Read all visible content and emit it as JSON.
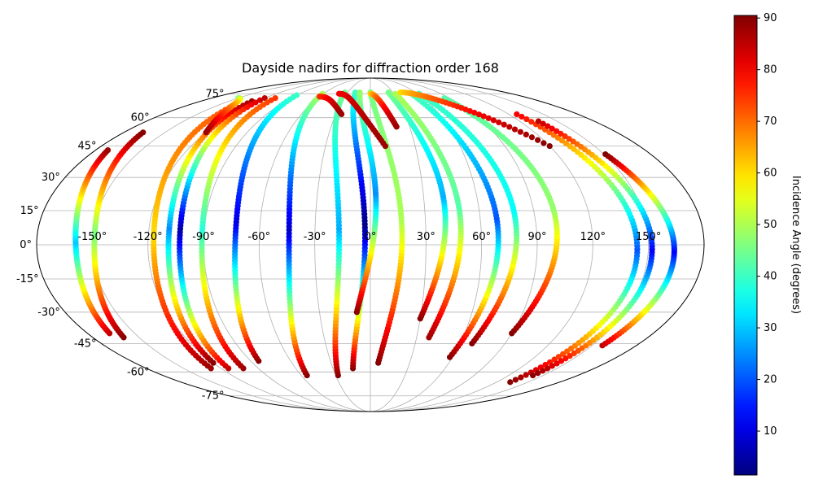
{
  "chart_data": {
    "type": "scatter",
    "projection": "mollweide",
    "title": "Dayside nadirs for diffraction order 168",
    "grid": true,
    "xtick_labels": [
      "-150°",
      "-120°",
      "-90°",
      "-60°",
      "-30°",
      "0°",
      "30°",
      "60°",
      "90°",
      "120°",
      "150°"
    ],
    "ytick_labels": [
      "-75°",
      "-60°",
      "-45°",
      "-30°",
      "-15°",
      "0°",
      "15°",
      "30°",
      "45°",
      "60°",
      "75°"
    ],
    "colorbar": {
      "label": "Incidence Angle (degrees)",
      "colormap": "jet",
      "range": [
        1.5,
        90.5
      ],
      "ticks": [
        "10",
        "20",
        "30",
        "40",
        "50",
        "60",
        "70",
        "80",
        "90"
      ]
    },
    "series": [
      {
        "lon": 157,
        "lat_min": -46,
        "lat_max": 41,
        "inc_start": 85,
        "inc_mid": 12,
        "inc_end": 90,
        "wraps": true
      },
      {
        "lon": -166,
        "lat_min": -40,
        "lat_max": 43,
        "inc_start": 85,
        "inc_mid": 30,
        "inc_end": 88,
        "wraps": true
      },
      {
        "lon": -160,
        "lat_min": -42,
        "lat_max": 52,
        "inc_start": 90,
        "inc_mid": 45,
        "inc_end": 90
      },
      {
        "lon": -128,
        "lat_min": -58,
        "lat_max": 66,
        "inc_start": 88,
        "inc_mid": 60,
        "inc_end": 72
      },
      {
        "lon": -120,
        "lat_min": -55,
        "lat_max": 70,
        "inc_start": 90,
        "inc_mid": 25,
        "inc_end": 88
      },
      {
        "lon": -114,
        "lat_min": -58,
        "lat_max": 72,
        "inc_start": 85,
        "inc_mid": 5,
        "inc_end": 85
      },
      {
        "lon": -102,
        "lat_min": -58,
        "lat_max": 72,
        "inc_start": 88,
        "inc_mid": 38,
        "inc_end": 75
      },
      {
        "lon": -84,
        "lat_min": -54,
        "lat_max": 74,
        "inc_start": 90,
        "inc_mid": 10,
        "inc_end": 40
      },
      {
        "lon": -55,
        "lat_min": -62,
        "lat_max": 75,
        "inc_start": 90,
        "inc_mid": 8,
        "inc_end": 50
      },
      {
        "lon": -28,
        "lat_min": -62,
        "lat_max": 76,
        "inc_start": 90,
        "inc_mid": 28,
        "inc_end": 45
      },
      {
        "lon": -14,
        "lat_min": -58,
        "lat_max": 76,
        "inc_start": 90,
        "inc_mid": 2,
        "inc_end": 40
      },
      {
        "lon": -8,
        "lat_min": -30,
        "lat_max": 76,
        "inc_start": 90,
        "inc_mid": 25,
        "inc_end": 48
      },
      {
        "lon": 6,
        "lat_min": -55,
        "lat_max": 76,
        "inc_start": 90,
        "inc_mid": 50,
        "inc_end": 45
      },
      {
        "lon": 30,
        "lat_min": -33,
        "lat_max": 76,
        "inc_start": 90,
        "inc_mid": 28,
        "inc_end": 45
      },
      {
        "lon": 38,
        "lat_min": -42,
        "lat_max": 75,
        "inc_start": 88,
        "inc_mid": 42,
        "inc_end": 50
      },
      {
        "lon": 58,
        "lat_min": -52,
        "lat_max": 75,
        "inc_start": 90,
        "inc_mid": 20,
        "inc_end": 42
      },
      {
        "lon": 68,
        "lat_min": -45,
        "lat_max": 75,
        "inc_start": 90,
        "inc_mid": 35,
        "inc_end": 40
      },
      {
        "lon": 90,
        "lat_min": -40,
        "lat_max": 72,
        "inc_start": 90,
        "inc_mid": 48,
        "inc_end": 42
      },
      {
        "lon": 133,
        "lat_min": -66,
        "lat_max": 62,
        "inc_start": 90,
        "inc_mid": 20,
        "inc_end": 80
      },
      {
        "lon": 141,
        "lat_min": -62,
        "lat_max": 58,
        "inc_start": 90,
        "inc_mid": 12,
        "inc_end": 85
      }
    ],
    "polar_arcs": [
      {
        "lat_start": 75,
        "lon_start": -40,
        "lon_end": 10,
        "lat_end": 45,
        "inc_start": 80,
        "inc_end": 88
      },
      {
        "lat_start": 75,
        "lon_start": 0,
        "lon_end": 20,
        "lat_end": 55,
        "inc_start": 60,
        "inc_end": 88
      },
      {
        "lat_start": 73,
        "lon_start": -60,
        "lon_end": -25,
        "lat_end": 62,
        "inc_start": 75,
        "inc_end": 88
      },
      {
        "lat_start": 76,
        "lon_start": 40,
        "lon_end": 120,
        "lat_end": 45,
        "inc_start": 60,
        "inc_end": 90
      },
      {
        "lat_start": 72,
        "lon_start": -150,
        "lon_end": -120,
        "lat_end": 52,
        "inc_start": 45,
        "inc_end": 88
      }
    ]
  }
}
